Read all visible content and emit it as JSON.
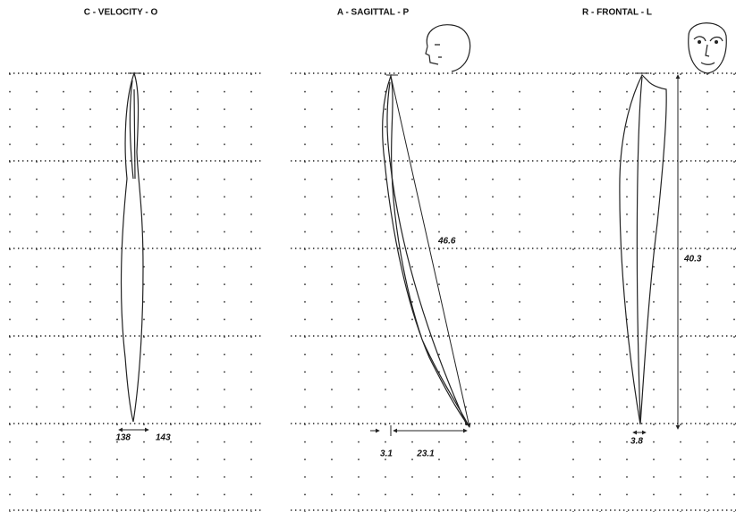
{
  "panels": [
    {
      "title": "C - VELOCITY - O",
      "labels": [
        "138",
        "143"
      ]
    },
    {
      "title": "A - SAGITTAL - P",
      "labels": [
        "46.6",
        "3.1",
        "23.1"
      ]
    },
    {
      "title": "R - FRONTAL - L",
      "labels": [
        "40.3",
        "3.8"
      ]
    }
  ]
}
